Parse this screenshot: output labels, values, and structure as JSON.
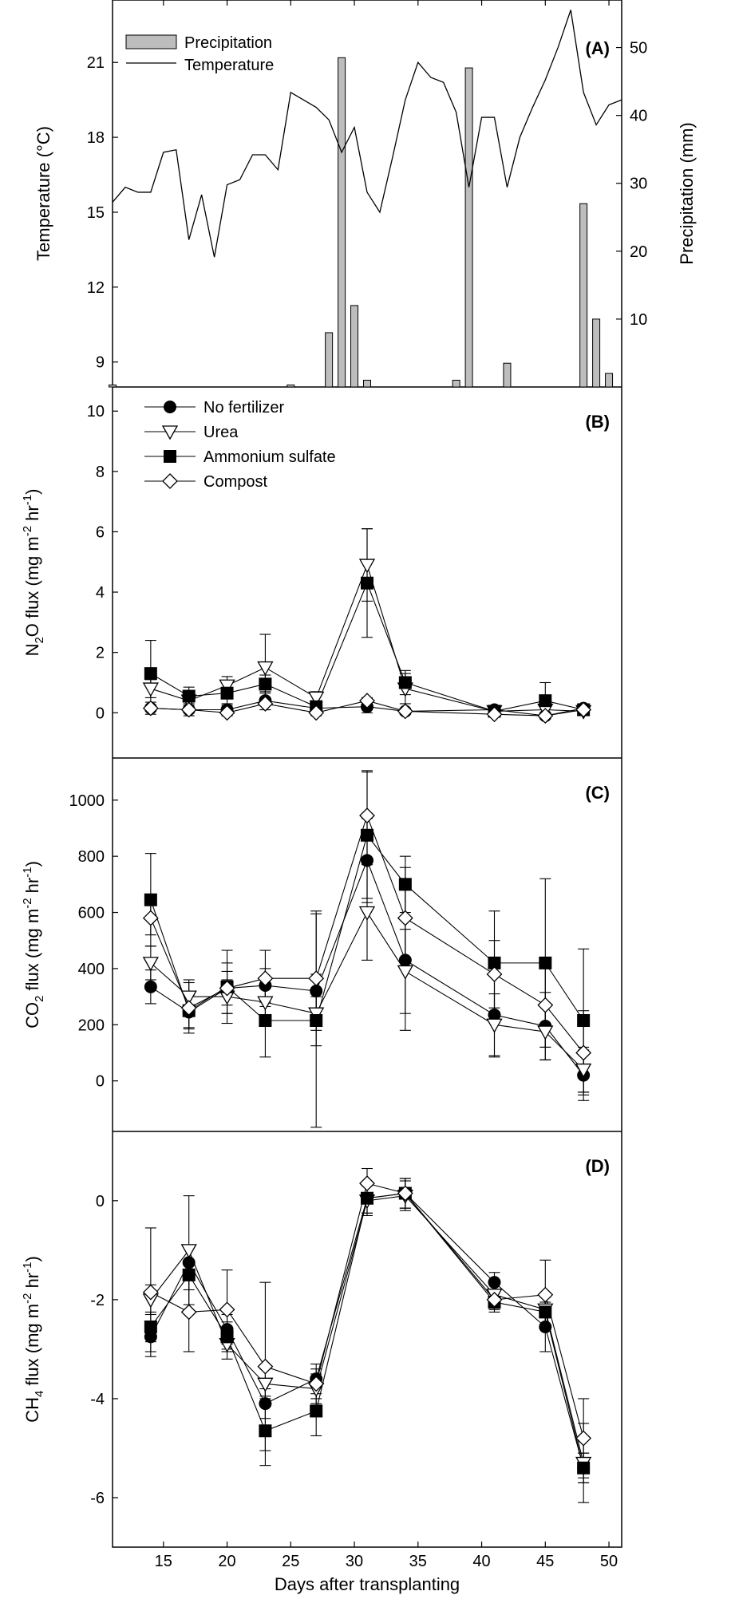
{
  "shared_xlabel": "Days after transplanting",
  "chart_data": [
    {
      "type": "bar+line",
      "panel_label": "(A)",
      "xlim": [
        11,
        51
      ],
      "xticks": [
        15,
        20,
        25,
        30,
        35,
        40,
        45,
        50
      ],
      "ylabel": "Temperature (°C)",
      "ylim": [
        8,
        23.5
      ],
      "yticks": [
        9,
        12,
        15,
        18,
        21
      ],
      "y2label": "Precipitation (mm)",
      "y2lim": [
        0,
        57
      ],
      "y2ticks": [
        10,
        20,
        30,
        40,
        50
      ],
      "legend": [
        {
          "name": "Precipitation",
          "marker": "bar"
        },
        {
          "name": "Temperature",
          "marker": "line"
        }
      ],
      "temperature": {
        "x": [
          11,
          12,
          13,
          14,
          15,
          16,
          17,
          18,
          19,
          20,
          21,
          22,
          23,
          24,
          25,
          26,
          27,
          28,
          29,
          30,
          31,
          32,
          33,
          34,
          35,
          36,
          37,
          38,
          39,
          40,
          41,
          42,
          43,
          44,
          45,
          46,
          47,
          48,
          49,
          50,
          51
        ],
        "values": [
          15.4,
          16.0,
          15.8,
          15.8,
          17.4,
          17.5,
          13.9,
          15.7,
          13.2,
          16.1,
          16.3,
          17.3,
          17.3,
          16.7,
          19.8,
          19.5,
          19.2,
          18.7,
          17.4,
          18.4,
          15.8,
          15.0,
          17.2,
          19.5,
          21.0,
          20.4,
          20.2,
          19.0,
          16.0,
          18.8,
          18.8,
          16.0,
          18.0,
          19.2,
          20.3,
          21.6,
          23.1,
          19.8,
          18.5,
          19.3,
          19.5
        ]
      },
      "precipitation": {
        "x": [
          11,
          25,
          28,
          29,
          30,
          31,
          38,
          39,
          42,
          48,
          49,
          50
        ],
        "values": [
          0.3,
          0.3,
          8.0,
          48.5,
          12.0,
          1.0,
          1.0,
          47.0,
          3.5,
          27.0,
          10.0,
          2.0
        ]
      }
    },
    {
      "type": "line",
      "panel_label": "(B)",
      "xlim": [
        11,
        51
      ],
      "ylabel_main": "N",
      "ylabel_sub": "2",
      "ylabel_rest": "O flux (mg m",
      "ylabel_sup1": "-2",
      "ylabel_mid": " hr",
      "ylabel_sup2": "-1",
      "ylabel_end": ")",
      "ylim": [
        -1.5,
        10.8
      ],
      "yticks": [
        0,
        2,
        4,
        6,
        8,
        10
      ],
      "x": [
        14,
        17,
        20,
        23,
        27,
        31,
        34,
        41,
        45,
        48
      ],
      "series": [
        {
          "name": "No fertilizer",
          "marker": "circle",
          "values": [
            0.15,
            0.1,
            0.1,
            0.4,
            0.15,
            0.2,
            0.05,
            0.1,
            -0.1,
            0.15
          ],
          "errors": [
            0.2,
            0.2,
            0.2,
            0.3,
            0.2,
            0.2,
            0.1,
            0.1,
            0.1,
            0.1
          ]
        },
        {
          "name": "Urea",
          "marker": "triangle-down",
          "values": [
            0.8,
            0.4,
            0.9,
            1.5,
            0.5,
            4.9,
            0.8,
            0.05,
            0.1,
            0.05
          ],
          "errors": [
            0.3,
            0.3,
            0.3,
            1.1,
            0.2,
            1.2,
            0.5,
            0.1,
            0.1,
            0.1
          ]
        },
        {
          "name": "Ammonium sulfate",
          "marker": "square",
          "values": [
            1.3,
            0.55,
            0.65,
            0.95,
            0.2,
            4.3,
            1.0,
            0.05,
            0.4,
            0.1
          ],
          "errors": [
            1.1,
            0.3,
            0.4,
            0.3,
            0.2,
            1.8,
            0.4,
            0.1,
            0.6,
            0.1
          ]
        },
        {
          "name": "Compost",
          "marker": "diamond",
          "values": [
            0.15,
            0.1,
            0.0,
            0.3,
            0.0,
            0.4,
            0.05,
            -0.05,
            -0.1,
            0.1
          ],
          "errors": [
            0.1,
            0.1,
            0.1,
            0.2,
            0.1,
            0.1,
            0.1,
            0.1,
            0.1,
            0.1
          ]
        }
      ]
    },
    {
      "type": "line",
      "panel_label": "(C)",
      "xlim": [
        11,
        51
      ],
      "ylabel_main": "CO",
      "ylabel_sub": "2",
      "ylabel_rest": " flux (mg m",
      "ylabel_sup1": "-2",
      "ylabel_mid": " hr",
      "ylabel_sup2": "-1",
      "ylabel_end": ")",
      "ylim": [
        -180,
        1150
      ],
      "yticks": [
        0,
        200,
        400,
        600,
        800,
        1000
      ],
      "x": [
        14,
        17,
        20,
        23,
        27,
        31,
        34,
        41,
        45,
        48
      ],
      "series": [
        {
          "name": "No fertilizer",
          "marker": "circle",
          "values": [
            335,
            245,
            330,
            340,
            320,
            785,
            430,
            235,
            195,
            20
          ],
          "errors": [
            60,
            60,
            60,
            60,
            60,
            150,
            250,
            150,
            120,
            90
          ]
        },
        {
          "name": "Urea",
          "marker": "triangle-down",
          "values": [
            420,
            300,
            300,
            280,
            240,
            600,
            390,
            200,
            175,
            40
          ],
          "errors": [
            60,
            60,
            60,
            60,
            60,
            170,
            150,
            110,
            100,
            80
          ]
        },
        {
          "name": "Ammonium sulfate",
          "marker": "square",
          "values": [
            645,
            250,
            335,
            215,
            215,
            875,
            700,
            420,
            420,
            215
          ],
          "errors": [
            165,
            60,
            130,
            130,
            380,
            225,
            100,
            185,
            300,
            255
          ]
        },
        {
          "name": "Compost",
          "marker": "diamond",
          "values": [
            580,
            260,
            330,
            365,
            365,
            945,
            580,
            380,
            270,
            100
          ],
          "errors": [
            60,
            90,
            90,
            100,
            240,
            160,
            180,
            120,
            150,
            150
          ]
        }
      ]
    },
    {
      "type": "line",
      "panel_label": "(D)",
      "xlim": [
        11,
        51
      ],
      "ylabel_main": "CH",
      "ylabel_sub": "4",
      "ylabel_rest": " flux (mg m",
      "ylabel_sup1": "-2",
      "ylabel_mid": " hr",
      "ylabel_sup2": "-1",
      "ylabel_end": ")",
      "ylim": [
        -7.0,
        1.4
      ],
      "yticks": [
        -6,
        -4,
        -2,
        0
      ],
      "xlabel": "Days after transplanting",
      "x": [
        14,
        17,
        20,
        23,
        27,
        31,
        34,
        41,
        45,
        48
      ],
      "series": [
        {
          "name": "No fertilizer",
          "marker": "circle",
          "values": [
            -2.75,
            -1.25,
            -2.6,
            -4.1,
            -3.6,
            0.05,
            0.15,
            -1.65,
            -2.55,
            -5.4
          ],
          "errors": [
            0.3,
            0.3,
            0.3,
            0.3,
            0.3,
            0.3,
            0.3,
            0.2,
            0.5,
            0.3
          ]
        },
        {
          "name": "Urea",
          "marker": "triangle-down",
          "values": [
            -2.0,
            -1.0,
            -2.9,
            -3.7,
            -3.8,
            0.0,
            0.1,
            -1.9,
            -2.2,
            -5.3
          ],
          "errors": [
            0.3,
            1.1,
            0.3,
            0.3,
            0.3,
            0.3,
            0.3,
            0.3,
            0.3,
            0.8
          ]
        },
        {
          "name": "Ammonium sulfate",
          "marker": "square",
          "values": [
            -2.55,
            -1.5,
            -2.75,
            -4.65,
            -4.25,
            0.05,
            0.15,
            -2.05,
            -2.25,
            -5.4
          ],
          "errors": [
            0.3,
            0.3,
            0.3,
            0.7,
            0.5,
            0.3,
            0.3,
            0.2,
            0.3,
            0.3
          ]
        },
        {
          "name": "Compost",
          "marker": "diamond",
          "values": [
            -1.85,
            -2.25,
            -2.2,
            -3.35,
            -3.7,
            0.35,
            0.15,
            -2.0,
            -1.9,
            -4.8
          ],
          "errors": [
            1.3,
            0.8,
            0.8,
            1.7,
            0.3,
            0.3,
            0.3,
            0.2,
            0.7,
            0.8
          ]
        }
      ]
    }
  ]
}
